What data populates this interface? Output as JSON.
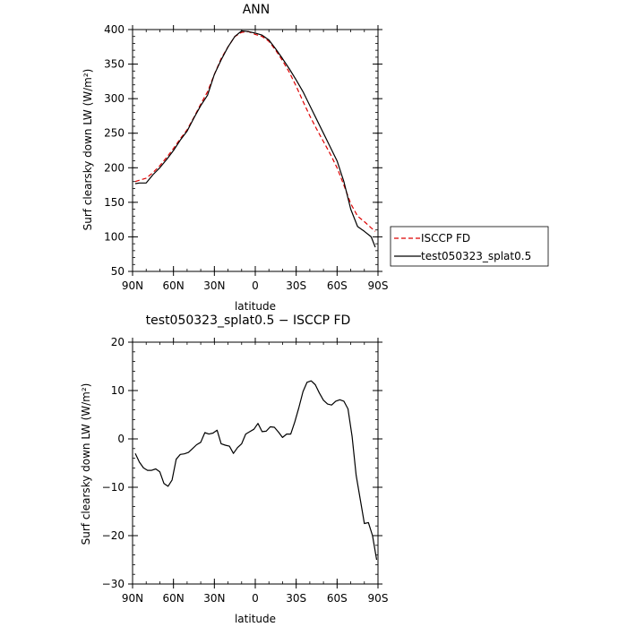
{
  "chart_data": [
    {
      "type": "line",
      "title": "ANN",
      "xlabel": "latitude",
      "ylabel": "Surf clearsky down LW (W/m²)",
      "xlim": [
        -90,
        90
      ],
      "ylim": [
        50,
        400
      ],
      "xticks": [
        -90,
        -60,
        -30,
        0,
        30,
        60,
        90
      ],
      "xtick_labels": [
        "90N",
        "60N",
        "30N",
        "0",
        "30S",
        "60S",
        "90S"
      ],
      "yticks": [
        50,
        100,
        150,
        200,
        250,
        300,
        350,
        400
      ],
      "ytick_labels": [
        "50",
        "100",
        "150",
        "200",
        "250",
        "300",
        "350",
        "400"
      ],
      "grid": false,
      "legend_position": "outside-right",
      "series": [
        {
          "name": "ISCCP FD",
          "color": "#dd0000",
          "dash": "dashed",
          "x": [
            -88,
            -85,
            -80,
            -75,
            -70,
            -65,
            -60,
            -55,
            -50,
            -45,
            -40,
            -35,
            -30,
            -25,
            -20,
            -15,
            -10,
            -5,
            0,
            5,
            10,
            15,
            20,
            25,
            30,
            35,
            40,
            45,
            50,
            55,
            60,
            65,
            70,
            75,
            80,
            85,
            88
          ],
          "y": [
            180,
            182,
            185,
            193,
            203,
            215,
            228,
            242,
            255,
            273,
            292,
            310,
            335,
            358,
            375,
            390,
            396,
            397,
            393,
            390,
            383,
            370,
            355,
            338,
            318,
            296,
            275,
            256,
            238,
            220,
            200,
            175,
            148,
            130,
            122,
            113,
            108
          ]
        },
        {
          "name": "test050323_splat0.5",
          "color": "#000000",
          "dash": "solid",
          "x": [
            -88,
            -85,
            -80,
            -75,
            -70,
            -65,
            -60,
            -55,
            -50,
            -45,
            -40,
            -35,
            -30,
            -25,
            -20,
            -15,
            -10,
            -5,
            0,
            5,
            10,
            15,
            20,
            25,
            30,
            35,
            40,
            45,
            50,
            55,
            60,
            65,
            70,
            75,
            80,
            85,
            88
          ],
          "y": [
            177,
            178,
            178,
            190,
            200,
            212,
            225,
            240,
            253,
            272,
            290,
            305,
            335,
            356,
            375,
            390,
            398,
            397,
            395,
            392,
            385,
            372,
            358,
            343,
            327,
            310,
            290,
            270,
            250,
            230,
            210,
            180,
            140,
            115,
            108,
            100,
            85
          ]
        }
      ]
    },
    {
      "type": "line",
      "title": "test050323_splat0.5 − ISCCP FD",
      "xlabel": "latitude",
      "ylabel": "Surf clearsky down LW (W/m²)",
      "xlim": [
        -90,
        90
      ],
      "ylim": [
        -30,
        20
      ],
      "xticks": [
        -90,
        -60,
        -30,
        0,
        30,
        60,
        90
      ],
      "xtick_labels": [
        "90N",
        "60N",
        "30N",
        "0",
        "30S",
        "60S",
        "90S"
      ],
      "yticks": [
        -30,
        -20,
        -10,
        0,
        10,
        20
      ],
      "ytick_labels": [
        "−30",
        "−20",
        "−10",
        "0",
        "10",
        "20"
      ],
      "grid": false,
      "series": [
        {
          "color": "#000000",
          "dash": "solid",
          "x": [
            -88,
            -85,
            -82,
            -79,
            -76,
            -73,
            -70,
            -67,
            -64,
            -61,
            -58,
            -55,
            -52,
            -49,
            -46,
            -43,
            -40,
            -37,
            -34,
            -31,
            -28,
            -25,
            -22,
            -19,
            -16,
            -13,
            -10,
            -7,
            -4,
            -1,
            2,
            5,
            8,
            11,
            14,
            17,
            20,
            23,
            26,
            29,
            32,
            35,
            38,
            41,
            44,
            47,
            50,
            53,
            56,
            59,
            62,
            65,
            68,
            71,
            74,
            77,
            80,
            83,
            86,
            89
          ],
          "y": [
            -3,
            -4.8,
            -6,
            -6.5,
            -6.5,
            -6.2,
            -6.8,
            -9.2,
            -9.8,
            -8.5,
            -4.2,
            -3.2,
            -3.1,
            -2.8,
            -2,
            -1.2,
            -0.7,
            1.3,
            1,
            1.2,
            1.8,
            -1,
            -1.3,
            -1.5,
            -3,
            -1.8,
            -1,
            1,
            1.5,
            2,
            3.2,
            1.5,
            1.6,
            2.5,
            2.4,
            1.4,
            0.3,
            1,
            1,
            3.5,
            6.5,
            9.8,
            11.7,
            12,
            11.2,
            9.5,
            8,
            7.2,
            7,
            7.8,
            8.1,
            7.8,
            6.2,
            0.5,
            -7.5,
            -12.5,
            -17.5,
            -17.3,
            -20,
            -25
          ]
        }
      ]
    }
  ]
}
